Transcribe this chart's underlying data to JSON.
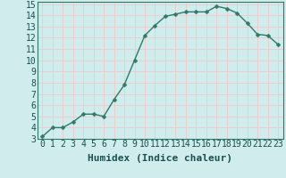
{
  "x": [
    0,
    1,
    2,
    3,
    4,
    5,
    6,
    7,
    8,
    9,
    10,
    11,
    12,
    13,
    14,
    15,
    16,
    17,
    18,
    19,
    20,
    21,
    22,
    23
  ],
  "y": [
    3.2,
    4.0,
    4.0,
    4.5,
    5.2,
    5.2,
    5.0,
    6.5,
    7.8,
    10.0,
    12.2,
    13.1,
    13.9,
    14.1,
    14.3,
    14.3,
    14.3,
    14.8,
    14.6,
    14.2,
    13.3,
    12.3,
    12.2,
    11.4
  ],
  "line_color": "#2d7a6a",
  "marker": "D",
  "marker_size": 2.5,
  "bg_color": "#d0ecec",
  "grid_major_color": "#f0c8c8",
  "grid_minor_color": "#e8d8d8",
  "xlabel": "Humidex (Indice chaleur)",
  "xlim": [
    -0.5,
    23.5
  ],
  "ylim": [
    3,
    15.2
  ],
  "xticks": [
    0,
    1,
    2,
    3,
    4,
    5,
    6,
    7,
    8,
    9,
    10,
    11,
    12,
    13,
    14,
    15,
    16,
    17,
    18,
    19,
    20,
    21,
    22,
    23
  ],
  "yticks": [
    3,
    4,
    5,
    6,
    7,
    8,
    9,
    10,
    11,
    12,
    13,
    14,
    15
  ],
  "xlabel_fontsize": 8,
  "tick_fontsize": 7,
  "axis_bg": "#d0ecec"
}
